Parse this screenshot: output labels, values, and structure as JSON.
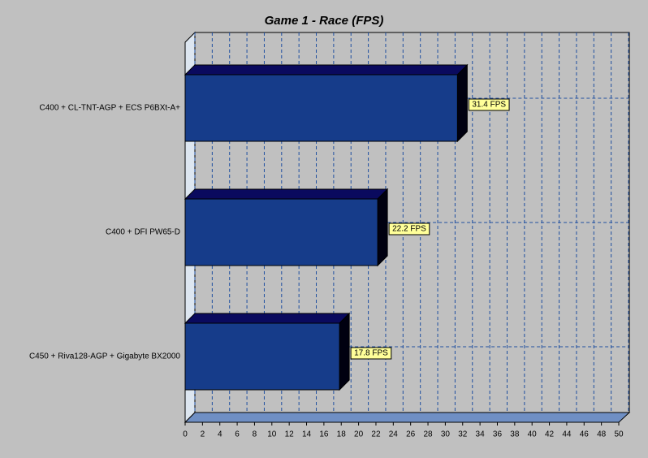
{
  "chart_data": {
    "type": "bar",
    "orientation": "horizontal",
    "title": "Game 1 - Race (FPS)",
    "categories": [
      "C400 + CL-TNT-AGP + ECS P6BXt-A+",
      "C400 + DFI PW65-D",
      "C450 + Riva128-AGP + Gigabyte BX2000"
    ],
    "values": [
      31.4,
      22.2,
      17.8
    ],
    "value_labels": [
      "31.4 FPS",
      "22.2 FPS",
      "17.8 FPS"
    ],
    "color": "#163c8a",
    "xlim": [
      0,
      50
    ],
    "xticks": [
      0,
      2,
      4,
      6,
      8,
      10,
      12,
      14,
      16,
      18,
      20,
      22,
      24,
      26,
      28,
      30,
      32,
      34,
      36,
      38,
      40,
      42,
      44,
      46,
      48,
      50
    ],
    "grid": true
  }
}
